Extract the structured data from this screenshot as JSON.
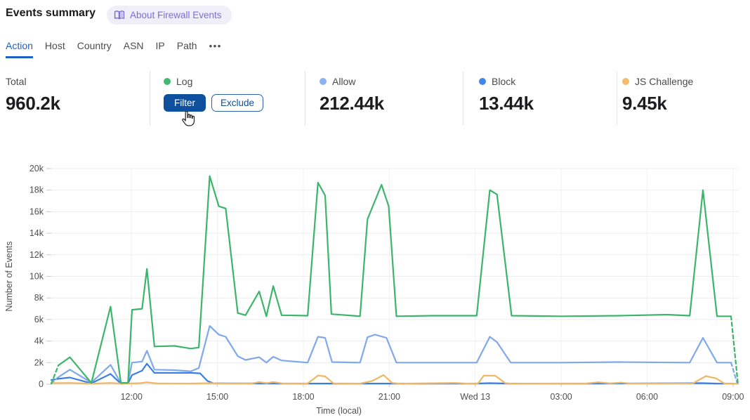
{
  "header": {
    "title": "Events summary",
    "about_badge": {
      "label": "About Firewall Events"
    }
  },
  "tabs": {
    "items": [
      {
        "label": "Action",
        "active": true
      },
      {
        "label": "Host"
      },
      {
        "label": "Country"
      },
      {
        "label": "ASN"
      },
      {
        "label": "IP"
      },
      {
        "label": "Path"
      }
    ],
    "more": "•••"
  },
  "stats": {
    "total": {
      "label": "Total",
      "value": "960.2k"
    },
    "log": {
      "label": "Log",
      "color": "#41ba6e",
      "filter_label": "Filter",
      "exclude_label": "Exclude"
    },
    "allow": {
      "label": "Allow",
      "value": "212.44k",
      "color": "#8ab2f2"
    },
    "block": {
      "label": "Block",
      "value": "13.44k",
      "color": "#4285ec"
    },
    "js_challenge": {
      "label": "JS Challenge",
      "value": "9.45k",
      "color": "#f2bc6b"
    }
  },
  "chart_data": {
    "type": "line",
    "title": "",
    "xlabel": "Time (local)",
    "ylabel": "Number of Events",
    "units": "events, values in thousands (k)",
    "x_domain_hours": [
      9.2,
      33.2
    ],
    "ylim": [
      0,
      20000
    ],
    "grid": true,
    "y_ticks": [
      "0",
      "2k",
      "4k",
      "6k",
      "8k",
      "10k",
      "12k",
      "14k",
      "16k",
      "18k",
      "20k"
    ],
    "x_ticks": [
      {
        "t": 12,
        "label": "12:00"
      },
      {
        "t": 15,
        "label": "15:00"
      },
      {
        "t": 18,
        "label": "18:00"
      },
      {
        "t": 21,
        "label": "21:00"
      },
      {
        "t": 24,
        "label": "Wed 13"
      },
      {
        "t": 27,
        "label": "03:00"
      },
      {
        "t": 30,
        "label": "06:00"
      },
      {
        "t": 33,
        "label": "09:00"
      }
    ],
    "series": [
      {
        "name": "Allow",
        "color": "#7fa8ed",
        "dash_start": 1,
        "dash_end": 1,
        "points": [
          [
            9.2,
            0.05
          ],
          [
            9.45,
            0.65
          ],
          [
            9.85,
            1.35
          ],
          [
            10.6,
            0.15
          ],
          [
            11.27,
            1.8
          ],
          [
            11.63,
            0.1
          ],
          [
            11.88,
            0.15
          ],
          [
            12.02,
            2.0
          ],
          [
            12.37,
            2.1
          ],
          [
            12.54,
            3.1
          ],
          [
            12.8,
            1.35
          ],
          [
            13.5,
            1.3
          ],
          [
            14.07,
            1.2
          ],
          [
            14.35,
            1.5
          ],
          [
            14.73,
            5.4
          ],
          [
            15.05,
            4.6
          ],
          [
            15.29,
            4.4
          ],
          [
            15.71,
            2.6
          ],
          [
            15.98,
            2.25
          ],
          [
            16.46,
            2.5
          ],
          [
            16.71,
            2.0
          ],
          [
            16.95,
            2.55
          ],
          [
            17.24,
            2.2
          ],
          [
            18.15,
            2.0
          ],
          [
            18.51,
            4.4
          ],
          [
            18.76,
            4.3
          ],
          [
            19.0,
            2.05
          ],
          [
            19.98,
            2.0
          ],
          [
            20.24,
            4.35
          ],
          [
            20.5,
            4.6
          ],
          [
            20.9,
            4.3
          ],
          [
            21.25,
            2.0
          ],
          [
            22.5,
            2.0
          ],
          [
            24.05,
            2.0
          ],
          [
            24.51,
            4.4
          ],
          [
            24.76,
            3.9
          ],
          [
            25.24,
            2.0
          ],
          [
            27.0,
            2.0
          ],
          [
            29.0,
            2.05
          ],
          [
            31.49,
            2.0
          ],
          [
            31.95,
            4.3
          ],
          [
            32.44,
            2.0
          ],
          [
            32.93,
            2.0
          ],
          [
            33.15,
            0.05
          ]
        ]
      },
      {
        "name": "Block",
        "color": "#3d7ee3",
        "dash_start": 1,
        "dash_end": 1,
        "points": [
          [
            9.2,
            0.4
          ],
          [
            9.45,
            0.5
          ],
          [
            9.85,
            0.62
          ],
          [
            10.6,
            0.08
          ],
          [
            11.27,
            0.95
          ],
          [
            11.63,
            0.05
          ],
          [
            11.88,
            0.08
          ],
          [
            12.02,
            0.85
          ],
          [
            12.37,
            1.25
          ],
          [
            12.54,
            1.9
          ],
          [
            12.8,
            1.05
          ],
          [
            13.5,
            1.05
          ],
          [
            14.1,
            1.05
          ],
          [
            14.4,
            1.0
          ],
          [
            14.65,
            0.3
          ],
          [
            14.85,
            0.1
          ],
          [
            15.3,
            0.07
          ],
          [
            18.0,
            0.06
          ],
          [
            21.0,
            0.06
          ],
          [
            24.0,
            0.06
          ],
          [
            24.5,
            0.1
          ],
          [
            25.2,
            0.06
          ],
          [
            28.0,
            0.06
          ],
          [
            31.9,
            0.1
          ],
          [
            32.44,
            0.06
          ],
          [
            32.93,
            0.05
          ],
          [
            33.1,
            0.02
          ]
        ]
      },
      {
        "name": "JS Challenge",
        "color": "#f0b865",
        "dash_start": 0,
        "dash_end": 0,
        "points": [
          [
            9.2,
            0.1
          ],
          [
            9.85,
            0.12
          ],
          [
            10.6,
            0.05
          ],
          [
            11.27,
            0.12
          ],
          [
            11.7,
            0.05
          ],
          [
            12.3,
            0.1
          ],
          [
            12.54,
            0.17
          ],
          [
            12.9,
            0.07
          ],
          [
            14.0,
            0.06
          ],
          [
            14.73,
            0.1
          ],
          [
            15.3,
            0.06
          ],
          [
            16.2,
            0.07
          ],
          [
            16.46,
            0.2
          ],
          [
            16.71,
            0.1
          ],
          [
            16.95,
            0.2
          ],
          [
            17.3,
            0.06
          ],
          [
            18.15,
            0.07
          ],
          [
            18.51,
            0.8
          ],
          [
            18.76,
            0.72
          ],
          [
            19.05,
            0.08
          ],
          [
            19.98,
            0.06
          ],
          [
            20.4,
            0.3
          ],
          [
            20.8,
            0.85
          ],
          [
            21.1,
            0.12
          ],
          [
            21.35,
            0.05
          ],
          [
            23.3,
            0.12
          ],
          [
            23.7,
            0.06
          ],
          [
            24.1,
            0.08
          ],
          [
            24.3,
            0.8
          ],
          [
            24.7,
            0.78
          ],
          [
            25.05,
            0.1
          ],
          [
            25.3,
            0.05
          ],
          [
            27.9,
            0.07
          ],
          [
            28.3,
            0.18
          ],
          [
            28.7,
            0.08
          ],
          [
            29.1,
            0.15
          ],
          [
            29.4,
            0.06
          ],
          [
            31.6,
            0.08
          ],
          [
            32.05,
            0.75
          ],
          [
            32.4,
            0.55
          ],
          [
            32.7,
            0.06
          ],
          [
            33.17,
            0.04
          ]
        ]
      },
      {
        "name": "Log",
        "color": "#3cb56a",
        "dash_start": 1,
        "dash_end": 1,
        "points": [
          [
            9.2,
            0.05
          ],
          [
            9.45,
            1.75
          ],
          [
            9.85,
            2.5
          ],
          [
            10.6,
            0.12
          ],
          [
            11.27,
            7.2
          ],
          [
            11.63,
            0.12
          ],
          [
            11.88,
            0.12
          ],
          [
            12.02,
            6.9
          ],
          [
            12.37,
            7.0
          ],
          [
            12.54,
            10.7
          ],
          [
            12.8,
            3.5
          ],
          [
            13.5,
            3.55
          ],
          [
            14.07,
            3.3
          ],
          [
            14.35,
            3.4
          ],
          [
            14.73,
            19.3
          ],
          [
            15.05,
            16.5
          ],
          [
            15.29,
            16.3
          ],
          [
            15.71,
            6.6
          ],
          [
            15.98,
            6.4
          ],
          [
            16.46,
            8.6
          ],
          [
            16.71,
            6.3
          ],
          [
            16.95,
            9.1
          ],
          [
            17.24,
            6.4
          ],
          [
            18.15,
            6.35
          ],
          [
            18.51,
            18.7
          ],
          [
            18.76,
            17.5
          ],
          [
            18.98,
            6.5
          ],
          [
            19.98,
            6.3
          ],
          [
            20.24,
            15.3
          ],
          [
            20.73,
            18.5
          ],
          [
            20.98,
            16.5
          ],
          [
            21.25,
            6.3
          ],
          [
            22.5,
            6.35
          ],
          [
            24.05,
            6.35
          ],
          [
            24.51,
            18.0
          ],
          [
            24.76,
            17.6
          ],
          [
            25.27,
            6.35
          ],
          [
            27.0,
            6.3
          ],
          [
            29.0,
            6.35
          ],
          [
            30.7,
            6.45
          ],
          [
            31.49,
            6.35
          ],
          [
            31.95,
            18.0
          ],
          [
            32.44,
            6.3
          ],
          [
            32.93,
            6.3
          ],
          [
            33.17,
            0.05
          ]
        ]
      }
    ],
    "colors": {
      "grid_h": "#ececec",
      "grid_v": "#f1f1f1",
      "axis": "#d8d8d8",
      "tick": "#c9c9c9",
      "label": "#4f4f4f"
    }
  }
}
